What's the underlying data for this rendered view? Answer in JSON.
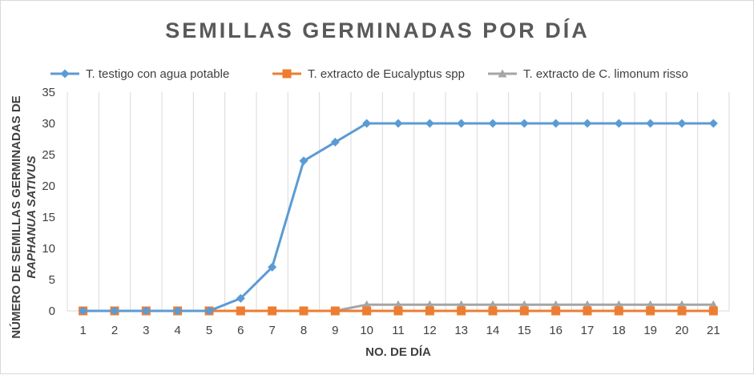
{
  "chart_data": {
    "type": "line",
    "title": "SEMILLAS  GERMINADAS  POR DÍA",
    "xlabel": "NO. DE DÍA",
    "ylabel_line1": "NÚMERO DE SEMILLAS GERMINADAS DE",
    "ylabel_line2": "RAPHANUA SATIVUS",
    "ylim": [
      0,
      35
    ],
    "yticks": [
      "0",
      "5",
      "10",
      "15",
      "20",
      "25",
      "30",
      "35"
    ],
    "categories": [
      "1",
      "2",
      "3",
      "4",
      "5",
      "6",
      "7",
      "8",
      "9",
      "10",
      "11",
      "12",
      "13",
      "14",
      "15",
      "16",
      "17",
      "18",
      "19",
      "20",
      "21"
    ],
    "grid": "vertical",
    "legend_position": "top",
    "series": [
      {
        "name": "T. testigo con agua potable",
        "color": "#5b9bd5",
        "marker": "diamond",
        "values": [
          0,
          0,
          0,
          0,
          0,
          2,
          7,
          24,
          27,
          30,
          30,
          30,
          30,
          30,
          30,
          30,
          30,
          30,
          30,
          30,
          30
        ]
      },
      {
        "name": "T. extracto de Eucalyptus spp",
        "color": "#ed7d31",
        "marker": "square",
        "values": [
          0,
          0,
          0,
          0,
          0,
          0,
          0,
          0,
          0,
          0,
          0,
          0,
          0,
          0,
          0,
          0,
          0,
          0,
          0,
          0,
          0
        ]
      },
      {
        "name": "T. extracto de C. limonum risso",
        "color": "#a5a5a5",
        "marker": "triangle",
        "values": [
          0,
          0,
          0,
          0,
          0,
          0,
          0,
          0,
          0,
          1,
          1,
          1,
          1,
          1,
          1,
          1,
          1,
          1,
          1,
          1,
          1
        ]
      }
    ]
  }
}
